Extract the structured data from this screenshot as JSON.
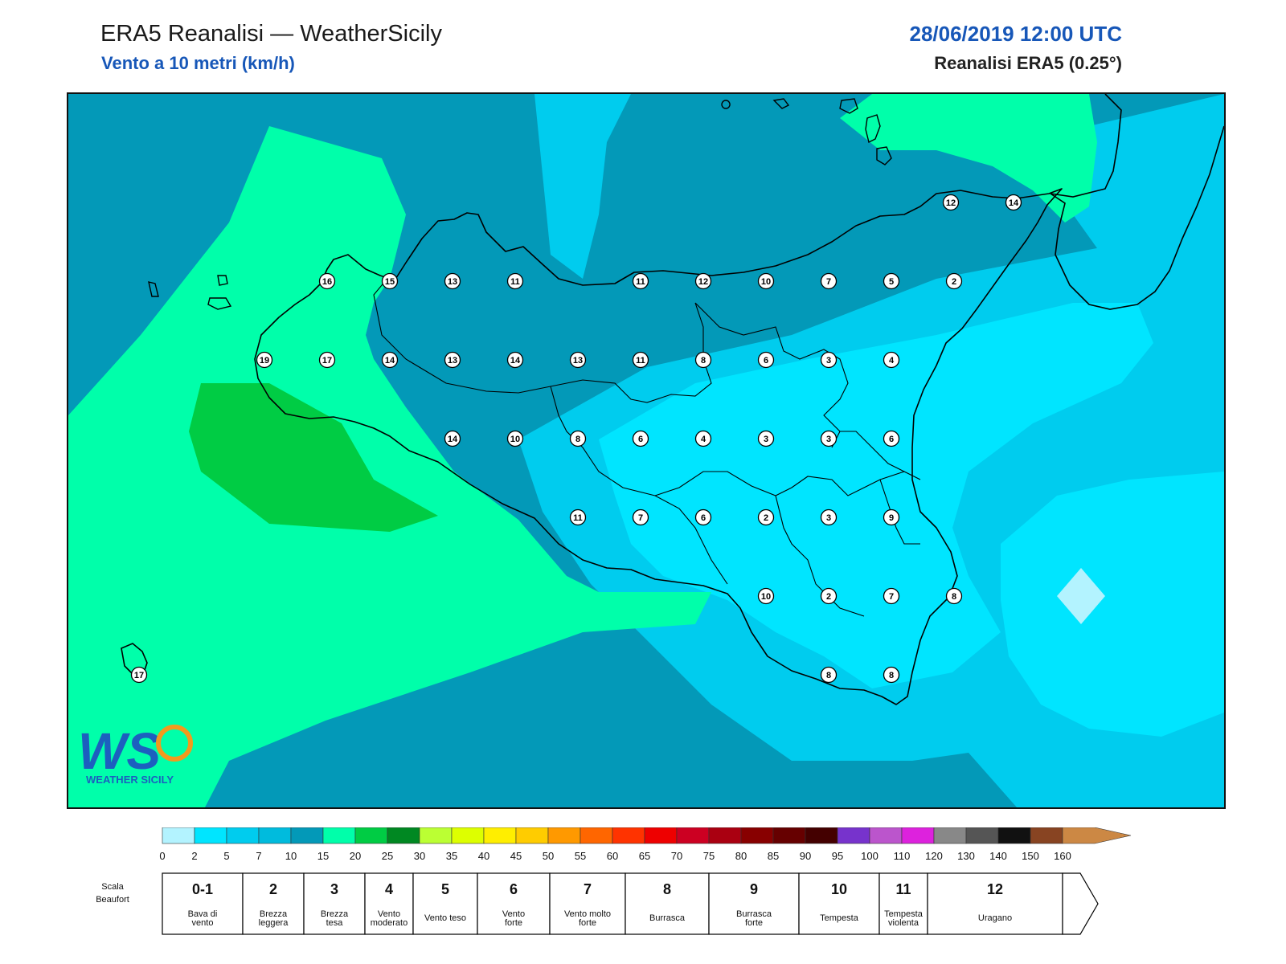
{
  "header": {
    "title": "ERA5 Reanalisi — WeatherSicily",
    "subtitle": "Vento a 10 metri (km/h)",
    "datetime": "28/06/2019 12:00 UTC",
    "source": "Reanalisi ERA5 (0.25°)"
  },
  "logo": {
    "text": "WEATHER SICILY",
    "letters": "WS"
  },
  "colors": {
    "sea_mid": "#0399b8",
    "light_cyan": "#00ccee",
    "cyan": "#00e5ff",
    "pale_cyan": "#b3f3ff",
    "aqua_green": "#00ffaa",
    "green": "#00cc44",
    "title_blue": "#1757b8"
  },
  "stations": [
    {
      "v": "16",
      "col": 0,
      "row": 0
    },
    {
      "v": "15",
      "col": 1,
      "row": 0
    },
    {
      "v": "13",
      "col": 2,
      "row": 0
    },
    {
      "v": "11",
      "col": 3,
      "row": 0
    },
    {
      "v": "11",
      "col": 5,
      "row": 0
    },
    {
      "v": "12",
      "col": 6,
      "row": 0
    },
    {
      "v": "10",
      "col": 7,
      "row": 0
    },
    {
      "v": "7",
      "col": 8,
      "row": 0
    },
    {
      "v": "5",
      "col": 9,
      "row": 0
    },
    {
      "v": "2",
      "col": 10,
      "row": 0
    },
    {
      "v": "19",
      "col": -1,
      "row": 1
    },
    {
      "v": "17",
      "col": 0,
      "row": 1
    },
    {
      "v": "14",
      "col": 1,
      "row": 1
    },
    {
      "v": "13",
      "col": 2,
      "row": 1
    },
    {
      "v": "14",
      "col": 3,
      "row": 1
    },
    {
      "v": "13",
      "col": 4,
      "row": 1
    },
    {
      "v": "11",
      "col": 5,
      "row": 1
    },
    {
      "v": "8",
      "col": 6,
      "row": 1
    },
    {
      "v": "6",
      "col": 7,
      "row": 1
    },
    {
      "v": "3",
      "col": 8,
      "row": 1
    },
    {
      "v": "4",
      "col": 9,
      "row": 1
    },
    {
      "v": "14",
      "col": 2,
      "row": 2
    },
    {
      "v": "10",
      "col": 3,
      "row": 2
    },
    {
      "v": "8",
      "col": 4,
      "row": 2
    },
    {
      "v": "6",
      "col": 5,
      "row": 2
    },
    {
      "v": "4",
      "col": 6,
      "row": 2
    },
    {
      "v": "3",
      "col": 7,
      "row": 2
    },
    {
      "v": "3",
      "col": 8,
      "row": 2
    },
    {
      "v": "6",
      "col": 9,
      "row": 2
    },
    {
      "v": "11",
      "col": 4,
      "row": 3
    },
    {
      "v": "7",
      "col": 5,
      "row": 3
    },
    {
      "v": "6",
      "col": 6,
      "row": 3
    },
    {
      "v": "2",
      "col": 7,
      "row": 3
    },
    {
      "v": "3",
      "col": 8,
      "row": 3
    },
    {
      "v": "9",
      "col": 9,
      "row": 3
    },
    {
      "v": "10",
      "col": 7,
      "row": 4
    },
    {
      "v": "2",
      "col": 8,
      "row": 4
    },
    {
      "v": "7",
      "col": 9,
      "row": 4
    },
    {
      "v": "8",
      "col": 10,
      "row": 4
    },
    {
      "v": "8",
      "col": 8,
      "row": 5
    },
    {
      "v": "8",
      "col": 9,
      "row": 5
    },
    {
      "v": "12",
      "col": 10,
      "row": -1
    },
    {
      "v": "14",
      "col": 11,
      "row": -1
    },
    {
      "v": "17",
      "col": -2,
      "row": 5
    }
  ],
  "colorbar": {
    "colors": [
      "#b3f3ff",
      "#00e5ff",
      "#00ccee",
      "#00bbdd",
      "#0399b8",
      "#00ffaa",
      "#00cc44",
      "#008822",
      "#bbff33",
      "#ddff00",
      "#ffee00",
      "#ffcc00",
      "#ff9900",
      "#ff6600",
      "#ff3300",
      "#ee0000",
      "#cc0022",
      "#aa0011",
      "#880000",
      "#660000",
      "#440000",
      "#7733cc",
      "#bb55cc",
      "#dd22dd",
      "#888888",
      "#555555",
      "#111111",
      "#884422",
      "#cc8844"
    ],
    "ticks": [
      "0",
      "2",
      "5",
      "7",
      "10",
      "15",
      "20",
      "25",
      "30",
      "35",
      "40",
      "45",
      "50",
      "55",
      "60",
      "65",
      "70",
      "75",
      "80",
      "85",
      "90",
      "95",
      "100",
      "110",
      "120",
      "130",
      "140",
      "150",
      "160"
    ]
  },
  "beaufort": {
    "label_line1": "Scala",
    "label_line2": "Beaufort",
    "cells": [
      {
        "num": "0-1",
        "d1": "Bava di",
        "d2": "vento"
      },
      {
        "num": "2",
        "d1": "Brezza",
        "d2": "leggera"
      },
      {
        "num": "3",
        "d1": "Brezza",
        "d2": "tesa"
      },
      {
        "num": "4",
        "d1": "Vento",
        "d2": "moderato"
      },
      {
        "num": "5",
        "d1": "Vento teso",
        "d2": ""
      },
      {
        "num": "6",
        "d1": "Vento",
        "d2": "forte"
      },
      {
        "num": "7",
        "d1": "Vento molto",
        "d2": "forte"
      },
      {
        "num": "8",
        "d1": "Burrasca",
        "d2": ""
      },
      {
        "num": "9",
        "d1": "Burrasca",
        "d2": "forte"
      },
      {
        "num": "10",
        "d1": "Tempesta",
        "d2": ""
      },
      {
        "num": "11",
        "d1": "Tempesta",
        "d2": "violenta"
      },
      {
        "num": "12",
        "d1": "Uragano",
        "d2": ""
      }
    ]
  }
}
